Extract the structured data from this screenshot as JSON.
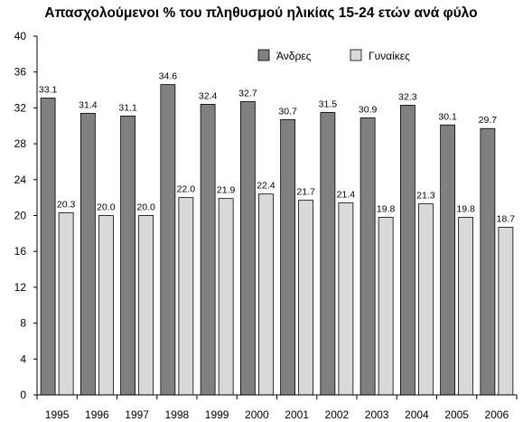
{
  "chart_data": {
    "type": "bar",
    "title": "Απασχολούμενοι % του πληθυσμού ηλικίας 15-24 ετών ανά φύλο",
    "categories": [
      "1995",
      "1996",
      "1997",
      "1998",
      "1999",
      "2000",
      "2001",
      "2002",
      "2003",
      "2004",
      "2005",
      "2006"
    ],
    "series": [
      {
        "name": "Άνδρες",
        "color": "#808080",
        "values": [
          33.1,
          31.4,
          31.1,
          34.6,
          32.4,
          32.7,
          30.7,
          31.5,
          30.9,
          32.3,
          30.1,
          29.7
        ]
      },
      {
        "name": "Γυναίκες",
        "color": "#d9d9d9",
        "values": [
          20.3,
          20.0,
          20.0,
          22.0,
          21.9,
          22.4,
          21.7,
          21.4,
          19.8,
          21.3,
          19.8,
          18.7
        ]
      }
    ],
    "data_labels": [
      [
        "33.1",
        "31.4",
        "31.1",
        "34.6",
        "32.4",
        "32.7",
        "30.7",
        "31.5",
        "30.9",
        "32.3",
        "30.1",
        "29.7"
      ],
      [
        "20.3",
        "20.0",
        "20.0",
        "22.0",
        "21.9",
        "22.4",
        "21.7",
        "21.4",
        "19.8",
        "21.3",
        "19.8",
        "18.7"
      ]
    ],
    "ylim": [
      0,
      40
    ],
    "yticks": [
      0,
      4,
      8,
      12,
      16,
      20,
      24,
      28,
      32,
      36,
      40
    ],
    "xlabel": "",
    "ylabel": "",
    "grid": false,
    "legend_position": "top-right"
  }
}
